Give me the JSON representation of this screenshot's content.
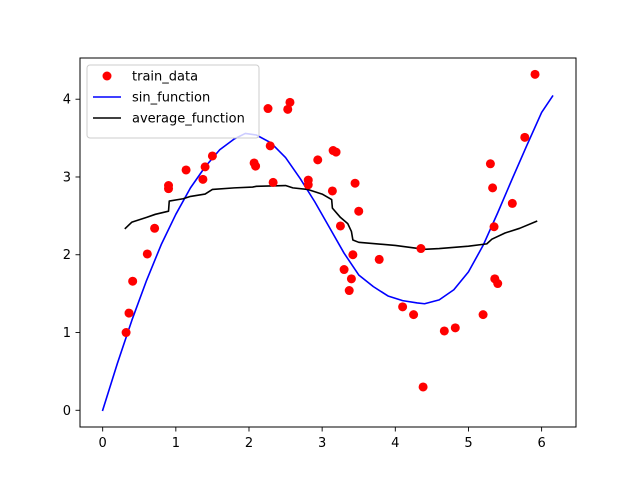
{
  "chart_data": {
    "type": "scatter",
    "title": "",
    "xlabel": "",
    "ylabel": "",
    "xlim": [
      -0.31,
      6.47
    ],
    "ylim": [
      -0.215,
      4.53
    ],
    "xticks": [
      0,
      1,
      2,
      3,
      4,
      5,
      6
    ],
    "yticks": [
      0,
      1,
      2,
      3,
      4
    ],
    "grid": false,
    "legend_position": "upper-left",
    "series": [
      {
        "name": "train_data",
        "kind": "scatter",
        "color": "#ff0000",
        "points": [
          [
            0.32,
            1.0
          ],
          [
            0.36,
            1.25
          ],
          [
            0.41,
            1.66
          ],
          [
            0.61,
            2.01
          ],
          [
            0.71,
            2.34
          ],
          [
            0.9,
            2.85
          ],
          [
            0.9,
            2.89
          ],
          [
            1.14,
            3.09
          ],
          [
            1.37,
            2.97
          ],
          [
            1.4,
            3.13
          ],
          [
            1.5,
            3.27
          ],
          [
            2.07,
            3.18
          ],
          [
            2.09,
            3.14
          ],
          [
            2.26,
            3.88
          ],
          [
            2.29,
            3.4
          ],
          [
            2.33,
            2.93
          ],
          [
            2.53,
            3.87
          ],
          [
            2.56,
            3.96
          ],
          [
            2.81,
            2.9
          ],
          [
            2.81,
            2.96
          ],
          [
            2.94,
            3.22
          ],
          [
            3.14,
            2.82
          ],
          [
            3.15,
            3.34
          ],
          [
            3.19,
            3.32
          ],
          [
            3.25,
            2.37
          ],
          [
            3.3,
            1.81
          ],
          [
            3.37,
            1.54
          ],
          [
            3.4,
            1.69
          ],
          [
            3.42,
            2.0
          ],
          [
            3.45,
            2.92
          ],
          [
            3.5,
            2.56
          ],
          [
            3.78,
            1.94
          ],
          [
            4.1,
            1.33
          ],
          [
            4.25,
            1.23
          ],
          [
            4.35,
            2.08
          ],
          [
            4.38,
            0.3
          ],
          [
            4.67,
            1.02
          ],
          [
            4.82,
            1.06
          ],
          [
            5.2,
            1.23
          ],
          [
            5.3,
            3.17
          ],
          [
            5.33,
            2.86
          ],
          [
            5.35,
            2.36
          ],
          [
            5.36,
            1.69
          ],
          [
            5.4,
            1.63
          ],
          [
            5.6,
            2.66
          ],
          [
            5.77,
            3.51
          ],
          [
            5.91,
            4.32
          ]
        ]
      },
      {
        "name": "sin_function",
        "kind": "line",
        "color": "#0000ff",
        "points": [
          [
            0.0,
            0.0
          ],
          [
            0.2,
            0.6
          ],
          [
            0.4,
            1.16
          ],
          [
            0.6,
            1.67
          ],
          [
            0.8,
            2.13
          ],
          [
            1.0,
            2.52
          ],
          [
            1.2,
            2.86
          ],
          [
            1.4,
            3.13
          ],
          [
            1.6,
            3.35
          ],
          [
            1.8,
            3.49
          ],
          [
            1.95,
            3.56
          ],
          [
            2.1,
            3.54
          ],
          [
            2.3,
            3.44
          ],
          [
            2.5,
            3.25
          ],
          [
            2.7,
            2.98
          ],
          [
            2.9,
            2.68
          ],
          [
            3.1,
            2.35
          ],
          [
            3.3,
            2.02
          ],
          [
            3.5,
            1.74
          ],
          [
            3.7,
            1.59
          ],
          [
            3.9,
            1.47
          ],
          [
            4.1,
            1.41
          ],
          [
            4.3,
            1.38
          ],
          [
            4.4,
            1.37
          ],
          [
            4.6,
            1.42
          ],
          [
            4.8,
            1.55
          ],
          [
            5.0,
            1.78
          ],
          [
            5.2,
            2.12
          ],
          [
            5.4,
            2.54
          ],
          [
            5.6,
            2.98
          ],
          [
            5.8,
            3.41
          ],
          [
            6.0,
            3.83
          ],
          [
            6.15,
            4.04
          ]
        ]
      },
      {
        "name": "average_function",
        "kind": "line",
        "color": "#000000",
        "points": [
          [
            0.31,
            2.34
          ],
          [
            0.4,
            2.42
          ],
          [
            0.6,
            2.48
          ],
          [
            0.72,
            2.52
          ],
          [
            0.9,
            2.56
          ],
          [
            0.91,
            2.69
          ],
          [
            1.1,
            2.72
          ],
          [
            1.2,
            2.75
          ],
          [
            1.4,
            2.78
          ],
          [
            1.5,
            2.84
          ],
          [
            1.8,
            2.86
          ],
          [
            2.05,
            2.87
          ],
          [
            2.1,
            2.88
          ],
          [
            2.5,
            2.89
          ],
          [
            2.6,
            2.86
          ],
          [
            2.8,
            2.84
          ],
          [
            3.0,
            2.78
          ],
          [
            3.13,
            2.71
          ],
          [
            3.14,
            2.6
          ],
          [
            3.25,
            2.48
          ],
          [
            3.35,
            2.4
          ],
          [
            3.4,
            2.3
          ],
          [
            3.42,
            2.19
          ],
          [
            3.5,
            2.16
          ],
          [
            4.0,
            2.12
          ],
          [
            4.4,
            2.07
          ],
          [
            4.6,
            2.08
          ],
          [
            5.0,
            2.11
          ],
          [
            5.25,
            2.14
          ],
          [
            5.32,
            2.2
          ],
          [
            5.5,
            2.28
          ],
          [
            5.7,
            2.34
          ],
          [
            5.93,
            2.43
          ]
        ]
      }
    ]
  }
}
